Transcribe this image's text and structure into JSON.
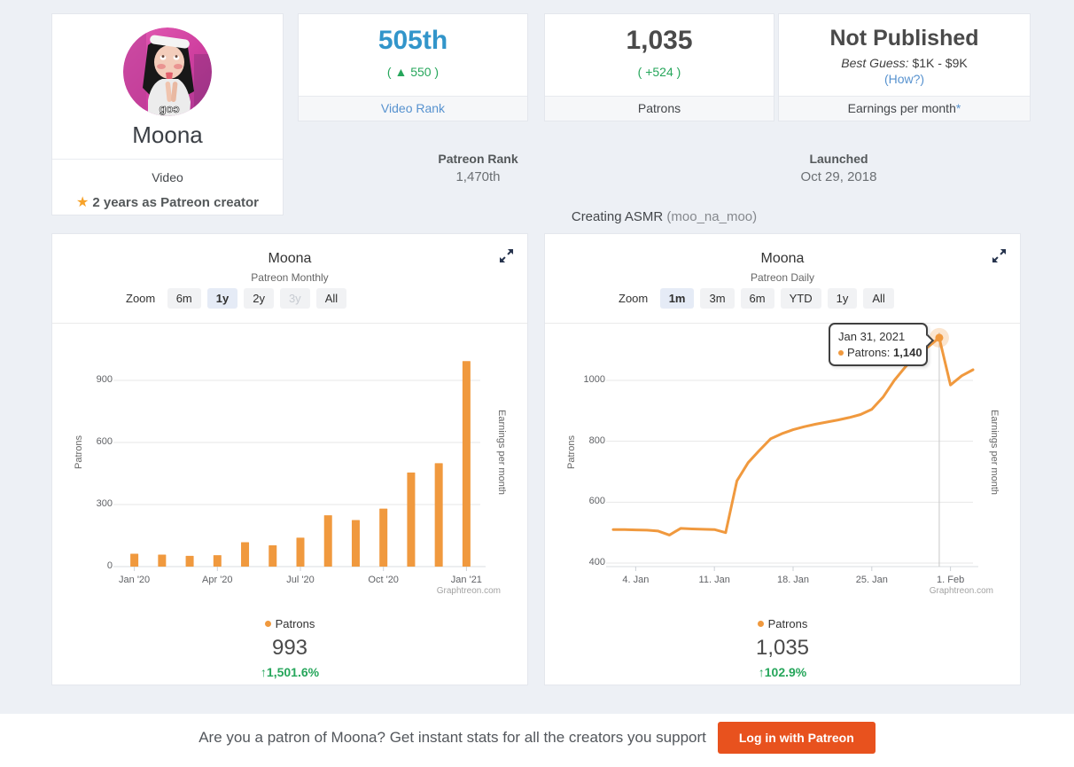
{
  "page": {
    "background": "#edf0f5",
    "accent_orange": "#f0993e",
    "accent_green": "#26a65b",
    "accent_blue": "#3295ca",
    "link_blue": "#5792cf",
    "patreon_orange": "#e8521e"
  },
  "profile": {
    "name": "Moona",
    "category": "Video",
    "tenure": "2 years as Patreon creator",
    "avatar_caption": "goɔ"
  },
  "stat_cards": {
    "video_rank": {
      "value": "505th",
      "change": "( ▲ 550 )",
      "label": "Video Rank"
    },
    "patrons": {
      "value": "1,035",
      "change": "( +524 )",
      "label": "Patrons"
    },
    "earnings": {
      "value": "Not Published",
      "guess_label": "Best Guess:",
      "guess_value": "$1K - $9K",
      "how_link": "(How?)",
      "label": "Earnings per month",
      "asterisk": "*"
    }
  },
  "meta": {
    "patreon_rank_label": "Patreon Rank",
    "patreon_rank_value": "1,470th",
    "launched_label": "Launched",
    "launched_value": "Oct 29, 2018",
    "creating_text": "Creating ASMR",
    "creating_handle": " (moo_na_moo)"
  },
  "charts": {
    "monthly": {
      "title": "Moona",
      "subtitle": "Patreon Monthly",
      "zoom_label": "Zoom",
      "zoom_buttons": [
        {
          "label": "6m"
        },
        {
          "label": "1y",
          "state": "active"
        },
        {
          "label": "2y"
        },
        {
          "label": "3y",
          "state": "disabled"
        },
        {
          "label": "All"
        }
      ],
      "watermark": "Graphtreon.com",
      "legend_label": "Patrons",
      "current_value": "993",
      "percent_change": "↑1,501.6%"
    },
    "daily": {
      "title": "Moona",
      "subtitle": "Patreon Daily",
      "zoom_label": "Zoom",
      "zoom_buttons": [
        {
          "label": "1m",
          "state": "active"
        },
        {
          "label": "3m"
        },
        {
          "label": "6m"
        },
        {
          "label": "YTD"
        },
        {
          "label": "1y"
        },
        {
          "label": "All"
        }
      ],
      "watermark": "Graphtreon.com",
      "legend_label": "Patrons",
      "current_value": "1,035",
      "percent_change": "↑102.9%",
      "tooltip": {
        "date": "Jan 31, 2021",
        "series_label": "Patrons:",
        "value": "1,140"
      }
    }
  },
  "footer": {
    "message": "Are you a patron of Moona? Get instant stats for all the creators you support",
    "button_label": "Log in with Patreon"
  },
  "chart_data": [
    {
      "type": "bar",
      "title": "Moona",
      "subtitle": "Patreon Monthly",
      "series_name": "Patrons",
      "color": "#f0993e",
      "categories": [
        "Jan '20",
        "Feb '20",
        "Mar '20",
        "Apr '20",
        "May '20",
        "Jun '20",
        "Jul '20",
        "Aug '20",
        "Sep '20",
        "Oct '20",
        "Nov '20",
        "Dec '20",
        "Jan '21"
      ],
      "values": [
        62,
        58,
        52,
        55,
        118,
        103,
        140,
        248,
        225,
        280,
        455,
        500,
        993
      ],
      "ylabel": "Patrons",
      "ylabel_right": "Earnings per month",
      "yticks": [
        0,
        300,
        600,
        900
      ],
      "ylim": [
        0,
        1100
      ],
      "xtick_indices": [
        0,
        3,
        6,
        9,
        12
      ],
      "xtick_labels": [
        "Jan '20",
        "Apr '20",
        "Jul '20",
        "Oct '20",
        "Jan '21"
      ],
      "grid": true,
      "legend_position": "bottom"
    },
    {
      "type": "line",
      "title": "Moona",
      "subtitle": "Patreon Daily",
      "series_name": "Patrons",
      "color": "#f0993e",
      "x": [
        "Jan 2",
        "Jan 3",
        "Jan 4",
        "Jan 5",
        "Jan 6",
        "Jan 7",
        "Jan 8",
        "Jan 9",
        "Jan 10",
        "Jan 11",
        "Jan 12",
        "Jan 13",
        "Jan 14",
        "Jan 15",
        "Jan 16",
        "Jan 17",
        "Jan 18",
        "Jan 19",
        "Jan 20",
        "Jan 21",
        "Jan 22",
        "Jan 23",
        "Jan 24",
        "Jan 25",
        "Jan 26",
        "Jan 27",
        "Jan 28",
        "Jan 29",
        "Jan 30",
        "Jan 31",
        "Feb 1",
        "Feb 2",
        "Feb 3"
      ],
      "values": [
        510,
        510,
        509,
        508,
        505,
        492,
        514,
        512,
        511,
        510,
        500,
        670,
        730,
        770,
        808,
        825,
        838,
        848,
        856,
        863,
        870,
        878,
        888,
        905,
        945,
        1000,
        1045,
        1080,
        1110,
        1140,
        985,
        1015,
        1035
      ],
      "ylabel": "Patrons",
      "ylabel_right": "Earnings per month",
      "yticks": [
        400,
        600,
        800,
        1000
      ],
      "ylim": [
        380,
        1160
      ],
      "xtick_indices": [
        2,
        9,
        16,
        23,
        30
      ],
      "xtick_labels": [
        "4. Jan",
        "11. Jan",
        "18. Jan",
        "25. Jan",
        "1. Feb"
      ],
      "grid": true,
      "legend_position": "bottom",
      "annotation": {
        "index": 29,
        "date": "Jan 31, 2021",
        "value": 1140
      }
    }
  ]
}
